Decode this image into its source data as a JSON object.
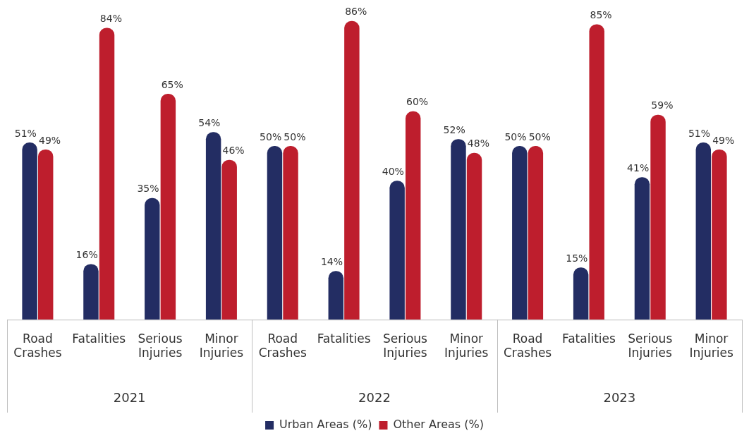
{
  "chart_data": {
    "type": "bar",
    "categories": [
      "Road Crashes",
      "Fatalities",
      "Serious Injuries",
      "Minor Injuries",
      "Road Crashes",
      "Fatalities",
      "Serious Injuries",
      "Minor Injuries",
      "Road Crashes",
      "Fatalities",
      "Serious Injuries",
      "Minor Injuries"
    ],
    "series": [
      {
        "name": "Urban Areas (%)",
        "color": "#232d63",
        "values": [
          51,
          16,
          35,
          54,
          50,
          14,
          40,
          52,
          50,
          15,
          41,
          51
        ],
        "value_labels": [
          "51%",
          "16%",
          "35%",
          "54%",
          "50%",
          "14%",
          "40%",
          "52%",
          "50%",
          "15%",
          "41%",
          "51%"
        ]
      },
      {
        "name": "Other Areas (%)",
        "color": "#be1e2d",
        "values": [
          49,
          84,
          65,
          46,
          50,
          86,
          60,
          48,
          50,
          85,
          59,
          49
        ],
        "value_labels": [
          "49%",
          "84%",
          "65%",
          "46%",
          "50%",
          "86%",
          "60%",
          "48%",
          "50%",
          "85%",
          "59%",
          "49%"
        ]
      }
    ],
    "annotations": [
      "2021",
      "2022",
      "2023"
    ],
    "legend": "bottom",
    "grid": false
  }
}
